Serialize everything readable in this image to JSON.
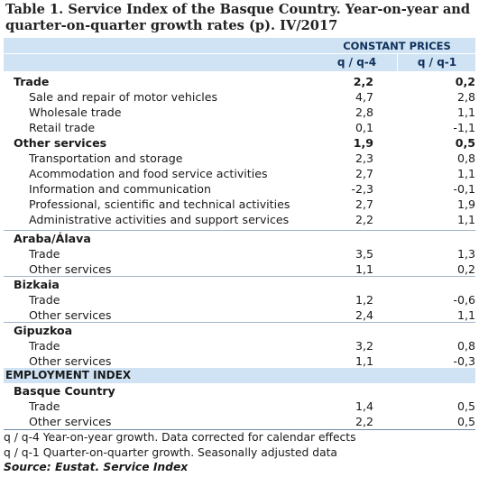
{
  "title": "Table 1. Service Index of the Basque Country. Year-on-year and quarter-on-quarter growth rates (p). IV/2017",
  "header": {
    "group": "CONSTANT PRICES",
    "col1": "q / q-4",
    "col2": "q / q-1"
  },
  "section1": {
    "rows": [
      {
        "label": "Trade",
        "v1": "2,2",
        "v2": "0,2"
      },
      {
        "label": "Sale and repair of motor vehicles",
        "v1": "4,7",
        "v2": "2,8"
      },
      {
        "label": "Wholesale trade",
        "v1": "2,8",
        "v2": "1,1"
      },
      {
        "label": "Retail trade",
        "v1": "0,1",
        "v2": "-1,1"
      },
      {
        "label": "Other services",
        "v1": "1,9",
        "v2": "0,5"
      },
      {
        "label": "Transportation and storage",
        "v1": "2,3",
        "v2": "0,8"
      },
      {
        "label": "Acommodation and food service activities",
        "v1": "2,7",
        "v2": "1,1"
      },
      {
        "label": "Information and communication",
        "v1": "-2,3",
        "v2": "-0,1"
      },
      {
        "label": "Professional, scientific and technical activities",
        "v1": "2,7",
        "v2": "1,9"
      },
      {
        "label": "Administrative activities and support services",
        "v1": "2,2",
        "v2": "1,1"
      }
    ]
  },
  "territories": {
    "araba": {
      "label": "Araba/Álava",
      "trade": {
        "label": "Trade",
        "v1": "3,5",
        "v2": "1,3"
      },
      "other": {
        "label": "Other services",
        "v1": "1,1",
        "v2": "0,2"
      }
    },
    "bizkaia": {
      "label": "Bizkaia",
      "trade": {
        "label": "Trade",
        "v1": "1,2",
        "v2": "-0,6"
      },
      "other": {
        "label": "Other services",
        "v1": "2,4",
        "v2": "1,1"
      }
    },
    "gipuzkoa": {
      "label": "Gipuzkoa",
      "trade": {
        "label": "Trade",
        "v1": "3,2",
        "v2": "0,8"
      },
      "other": {
        "label": "Other services",
        "v1": "1,1",
        "v2": "-0,3"
      }
    }
  },
  "employment": {
    "band": "EMPLOYMENT INDEX",
    "region": "Basque Country",
    "trade": {
      "label": "Trade",
      "v1": "1,4",
      "v2": "0,5"
    },
    "other": {
      "label": "Other services",
      "v1": "2,2",
      "v2": "0,5"
    }
  },
  "footnotes": {
    "note1": "q / q-4 Year-on-year growth. Data corrected for calendar effects",
    "note2": "q / q-1 Quarter-on-quarter growth. Seasonally adjusted data",
    "source": "Source: Eustat. Service Index"
  },
  "colors": {
    "header_band": "#cfe3f4",
    "rule": "#9fb4c9"
  }
}
